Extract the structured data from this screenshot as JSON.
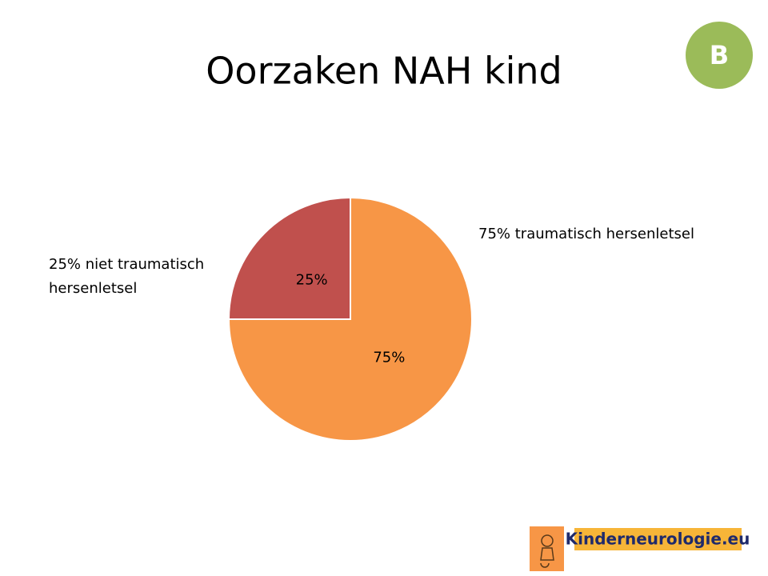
{
  "chart_data": {
    "type": "pie",
    "title": "Oorzaken NAH kind",
    "values": [
      75,
      25
    ],
    "value_labels": [
      "75%",
      "25%"
    ],
    "colors": [
      "#f79646",
      "#c0504d"
    ],
    "annotations": [
      [
        "75% traumatisch hersenletsel"
      ],
      [
        "25% niet traumatisch",
        "hersenletsel"
      ]
    ]
  },
  "badge": "B",
  "logo": "Kinderneurologie.eu"
}
